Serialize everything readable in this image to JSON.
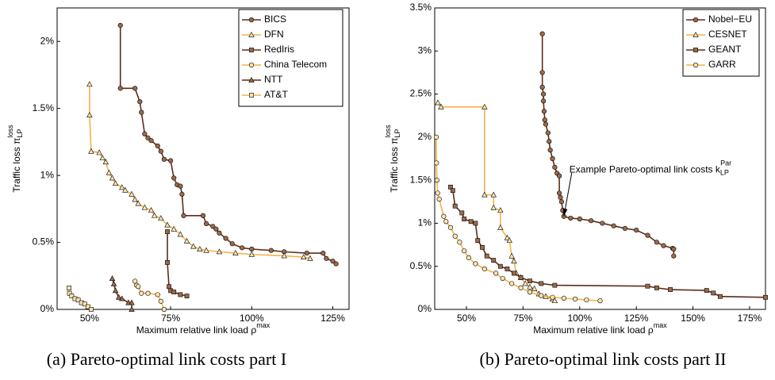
{
  "chart_data": [
    {
      "type": "line",
      "caption": "(a) Pareto-optimal link costs part I",
      "xlabel": {
        "text": "Maximum relative link load ρ",
        "sup": "max"
      },
      "ylabel": {
        "text": "Traffic loss π",
        "sub": "LP",
        "sup": "loss"
      },
      "xlim": [
        40,
        130
      ],
      "ylim": [
        0,
        2.25
      ],
      "xticks": [
        {
          "value": 50,
          "label": "50%"
        },
        {
          "value": 75,
          "label": "75%"
        },
        {
          "value": 100,
          "label": "100%"
        },
        {
          "value": 125,
          "label": "125%"
        }
      ],
      "yticks": [
        {
          "value": 0,
          "label": "0%"
        },
        {
          "value": 0.5,
          "label": "0.5%"
        },
        {
          "value": 1,
          "label": "1%"
        },
        {
          "value": 1.5,
          "label": "1.5%"
        },
        {
          "value": 2,
          "label": "2%"
        }
      ],
      "legend": "upper right",
      "grid": false,
      "series": [
        {
          "name": "BICS",
          "color": "#5a2d1c",
          "marker": "circle",
          "fill": "#9c6a48",
          "x": [
            59.5,
            59.5,
            64,
            65.5,
            66,
            67,
            68,
            69,
            71,
            72,
            73,
            75,
            76,
            77,
            78,
            78.5,
            79,
            85,
            86,
            88,
            89,
            90,
            92,
            94,
            97,
            100,
            106,
            110,
            117,
            122,
            123,
            125,
            126
          ],
          "values": [
            2.12,
            1.65,
            1.65,
            1.55,
            1.47,
            1.31,
            1.28,
            1.26,
            1.22,
            1.18,
            1.12,
            1.11,
            0.98,
            0.93,
            0.92,
            0.86,
            0.7,
            0.7,
            0.64,
            0.62,
            0.6,
            0.57,
            0.53,
            0.49,
            0.46,
            0.45,
            0.44,
            0.43,
            0.42,
            0.42,
            0.38,
            0.36,
            0.34
          ]
        },
        {
          "name": "DFN",
          "color": "#f4b24a",
          "marker": "triangle",
          "fill": "#fbe3b0",
          "x": [
            50,
            50,
            50.5,
            53,
            54,
            55,
            56,
            57,
            58,
            60,
            61,
            63,
            64,
            65,
            67,
            69,
            70,
            72,
            74,
            76,
            78,
            80,
            82,
            84,
            86,
            90,
            95,
            100,
            110,
            116,
            118
          ],
          "values": [
            1.68,
            1.45,
            1.18,
            1.17,
            1.13,
            1.1,
            1.02,
            0.98,
            0.94,
            0.91,
            0.89,
            0.86,
            0.82,
            0.79,
            0.76,
            0.74,
            0.7,
            0.68,
            0.63,
            0.6,
            0.56,
            0.51,
            0.47,
            0.45,
            0.44,
            0.43,
            0.42,
            0.41,
            0.4,
            0.39,
            0.38
          ]
        },
        {
          "name": "RedIris",
          "color": "#5a2d1c",
          "marker": "square",
          "fill": "#9c6a48",
          "x": [
            74,
            74,
            74.5,
            75,
            76,
            78,
            80
          ],
          "values": [
            0.58,
            0.35,
            0.17,
            0.14,
            0.13,
            0.11,
            0.1
          ]
        },
        {
          "name": "China Telecom",
          "color": "#f4b24a",
          "marker": "circle",
          "fill": "#fbe3b0",
          "x": [
            64,
            64.5,
            65,
            66,
            68,
            71,
            72,
            73
          ],
          "values": [
            0.21,
            0.18,
            0.17,
            0.12,
            0.12,
            0.11,
            0.06,
            0
          ]
        },
        {
          "name": "NTT",
          "color": "#5a2d1c",
          "marker": "triangle",
          "fill": "#9c6a48",
          "x": [
            57,
            57.5,
            58,
            59,
            60,
            62,
            63,
            63
          ],
          "values": [
            0.23,
            0.19,
            0.14,
            0.09,
            0.08,
            0.05,
            0.05,
            0
          ]
        },
        {
          "name": "AT&T",
          "color": "#f4b24a",
          "marker": "square",
          "fill": "#fbe3b0",
          "x": [
            43.7,
            43.8,
            44.5,
            45.5,
            46.5,
            47.5,
            48.5,
            49.5,
            50.5
          ],
          "values": [
            0.16,
            0.12,
            0.1,
            0.08,
            0.07,
            0.05,
            0.04,
            0.02,
            0
          ]
        }
      ]
    },
    {
      "type": "line",
      "caption": "(b) Pareto-optimal link costs part II",
      "xlabel": {
        "text": "Maximum relative link load ρ",
        "sup": "max"
      },
      "ylabel": {
        "text": "Traffic loss π",
        "sub": "LP",
        "sup": "loss"
      },
      "annotation": {
        "text": "Example Pareto-optimal link costs k",
        "sub": "LP",
        "sup": "Par",
        "x": 93,
        "y": 1.08
      },
      "xlim": [
        36,
        182
      ],
      "ylim": [
        0,
        3.5
      ],
      "xticks": [
        {
          "value": 50,
          "label": "50%"
        },
        {
          "value": 75,
          "label": "75%"
        },
        {
          "value": 100,
          "label": "100%"
        },
        {
          "value": 125,
          "label": "125%"
        },
        {
          "value": 150,
          "label": "150%"
        },
        {
          "value": 175,
          "label": "175%"
        }
      ],
      "yticks": [
        {
          "value": 0,
          "label": "0%"
        },
        {
          "value": 0.5,
          "label": "0.5%"
        },
        {
          "value": 1,
          "label": "1%"
        },
        {
          "value": 1.5,
          "label": "1.5%"
        },
        {
          "value": 2,
          "label": "2%"
        },
        {
          "value": 2.5,
          "label": "2.5%"
        },
        {
          "value": 3,
          "label": "3%"
        },
        {
          "value": 3.5,
          "label": "3.5%"
        }
      ],
      "legend": "upper right",
      "grid": false,
      "series": [
        {
          "name": "Nobel−EU",
          "color": "#5a2d1c",
          "marker": "circle",
          "fill": "#9c6a48",
          "x": [
            83.5,
            83.5,
            83.5,
            84,
            84,
            84.3,
            84.6,
            85,
            86,
            86.5,
            87,
            88,
            89,
            90,
            91,
            91,
            91.5,
            92,
            92.5,
            93,
            96,
            100,
            105,
            110,
            115,
            120,
            125,
            130,
            134,
            137,
            141,
            141.5,
            141.5
          ],
          "values": [
            3.2,
            2.75,
            2.58,
            2.5,
            2.42,
            2.3,
            2.2,
            2.15,
            2.05,
            1.95,
            1.85,
            1.75,
            1.65,
            1.58,
            1.55,
            1.35,
            1.3,
            1.25,
            1.15,
            1.08,
            1.06,
            1.05,
            1.03,
            1,
            0.97,
            0.94,
            0.92,
            0.86,
            0.78,
            0.74,
            0.71,
            0.7,
            0.62
          ]
        },
        {
          "name": "CESNET",
          "color": "#f4b24a",
          "marker": "triangle",
          "fill": "#fbe3b0",
          "x": [
            37.4,
            38.8,
            58,
            58,
            62,
            62,
            65,
            65,
            68,
            69,
            70,
            71,
            72,
            74,
            76,
            78,
            80,
            82,
            85,
            88,
            89
          ],
          "values": [
            2.4,
            2.35,
            2.35,
            1.33,
            1.33,
            1.18,
            1.15,
            0.95,
            0.83,
            0.8,
            0.62,
            0.56,
            0.42,
            0.37,
            0.3,
            0.26,
            0.24,
            0.18,
            0.15,
            0.12,
            0.1
          ]
        },
        {
          "name": "GEANT",
          "color": "#5a2d1c",
          "marker": "square",
          "fill": "#9c6a48",
          "x": [
            43,
            44,
            45,
            48,
            49,
            52,
            54,
            55,
            57,
            59,
            62,
            65,
            68,
            71,
            74,
            78,
            83,
            89,
            130,
            134,
            140,
            156,
            159,
            162,
            182
          ],
          "values": [
            1.42,
            1.38,
            1.2,
            1.12,
            1.05,
            1.02,
            1,
            0.8,
            0.72,
            0.62,
            0.57,
            0.5,
            0.47,
            0.42,
            0.37,
            0.33,
            0.3,
            0.28,
            0.27,
            0.25,
            0.23,
            0.22,
            0.19,
            0.15,
            0.14
          ]
        },
        {
          "name": "GARR",
          "color": "#f4b24a",
          "marker": "circle",
          "fill": "#fbe3b0",
          "x": [
            36.7,
            36.8,
            37,
            37.3,
            38,
            40,
            41,
            43,
            45,
            47,
            49,
            51,
            54,
            58,
            63,
            66,
            70,
            74,
            78,
            83,
            88,
            93,
            98,
            103,
            109
          ],
          "values": [
            2,
            1.7,
            1.5,
            1.35,
            1.28,
            1.08,
            1.02,
            0.95,
            0.85,
            0.78,
            0.68,
            0.6,
            0.53,
            0.47,
            0.42,
            0.36,
            0.3,
            0.25,
            0.2,
            0.16,
            0.14,
            0.13,
            0.12,
            0.11,
            0.1
          ]
        }
      ]
    }
  ]
}
